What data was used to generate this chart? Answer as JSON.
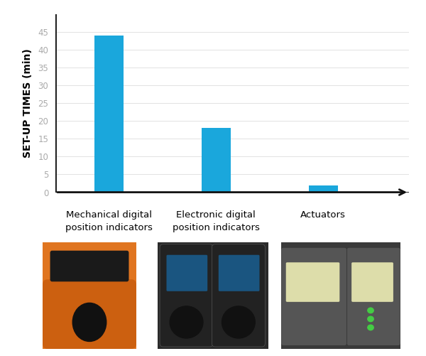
{
  "categories": [
    "Mechanical digital\nposition indicators",
    "Electronic digital\nposition indicators",
    "Actuators"
  ],
  "values": [
    44,
    18,
    2
  ],
  "bar_color": "#1aa7dc",
  "bar_width": 0.55,
  "ylabel": "SET-UP TIMES (min)",
  "yticks": [
    0,
    5,
    10,
    15,
    20,
    25,
    30,
    35,
    40,
    45
  ],
  "ylim": [
    0,
    50
  ],
  "background_color": "#ffffff",
  "grid_color": "#e2e2e2",
  "tick_color": "#aaaaaa",
  "ylabel_fontsize": 10,
  "xlabel_fontsize": 9.5,
  "bar_positions": [
    1.0,
    3.0,
    5.0
  ],
  "xlim": [
    0.0,
    6.6
  ],
  "arrow_color": "#111111",
  "axis_lw": 2.0,
  "img1_color": "#e07020",
  "img2_color": "#333333",
  "img3_color": "#444444"
}
